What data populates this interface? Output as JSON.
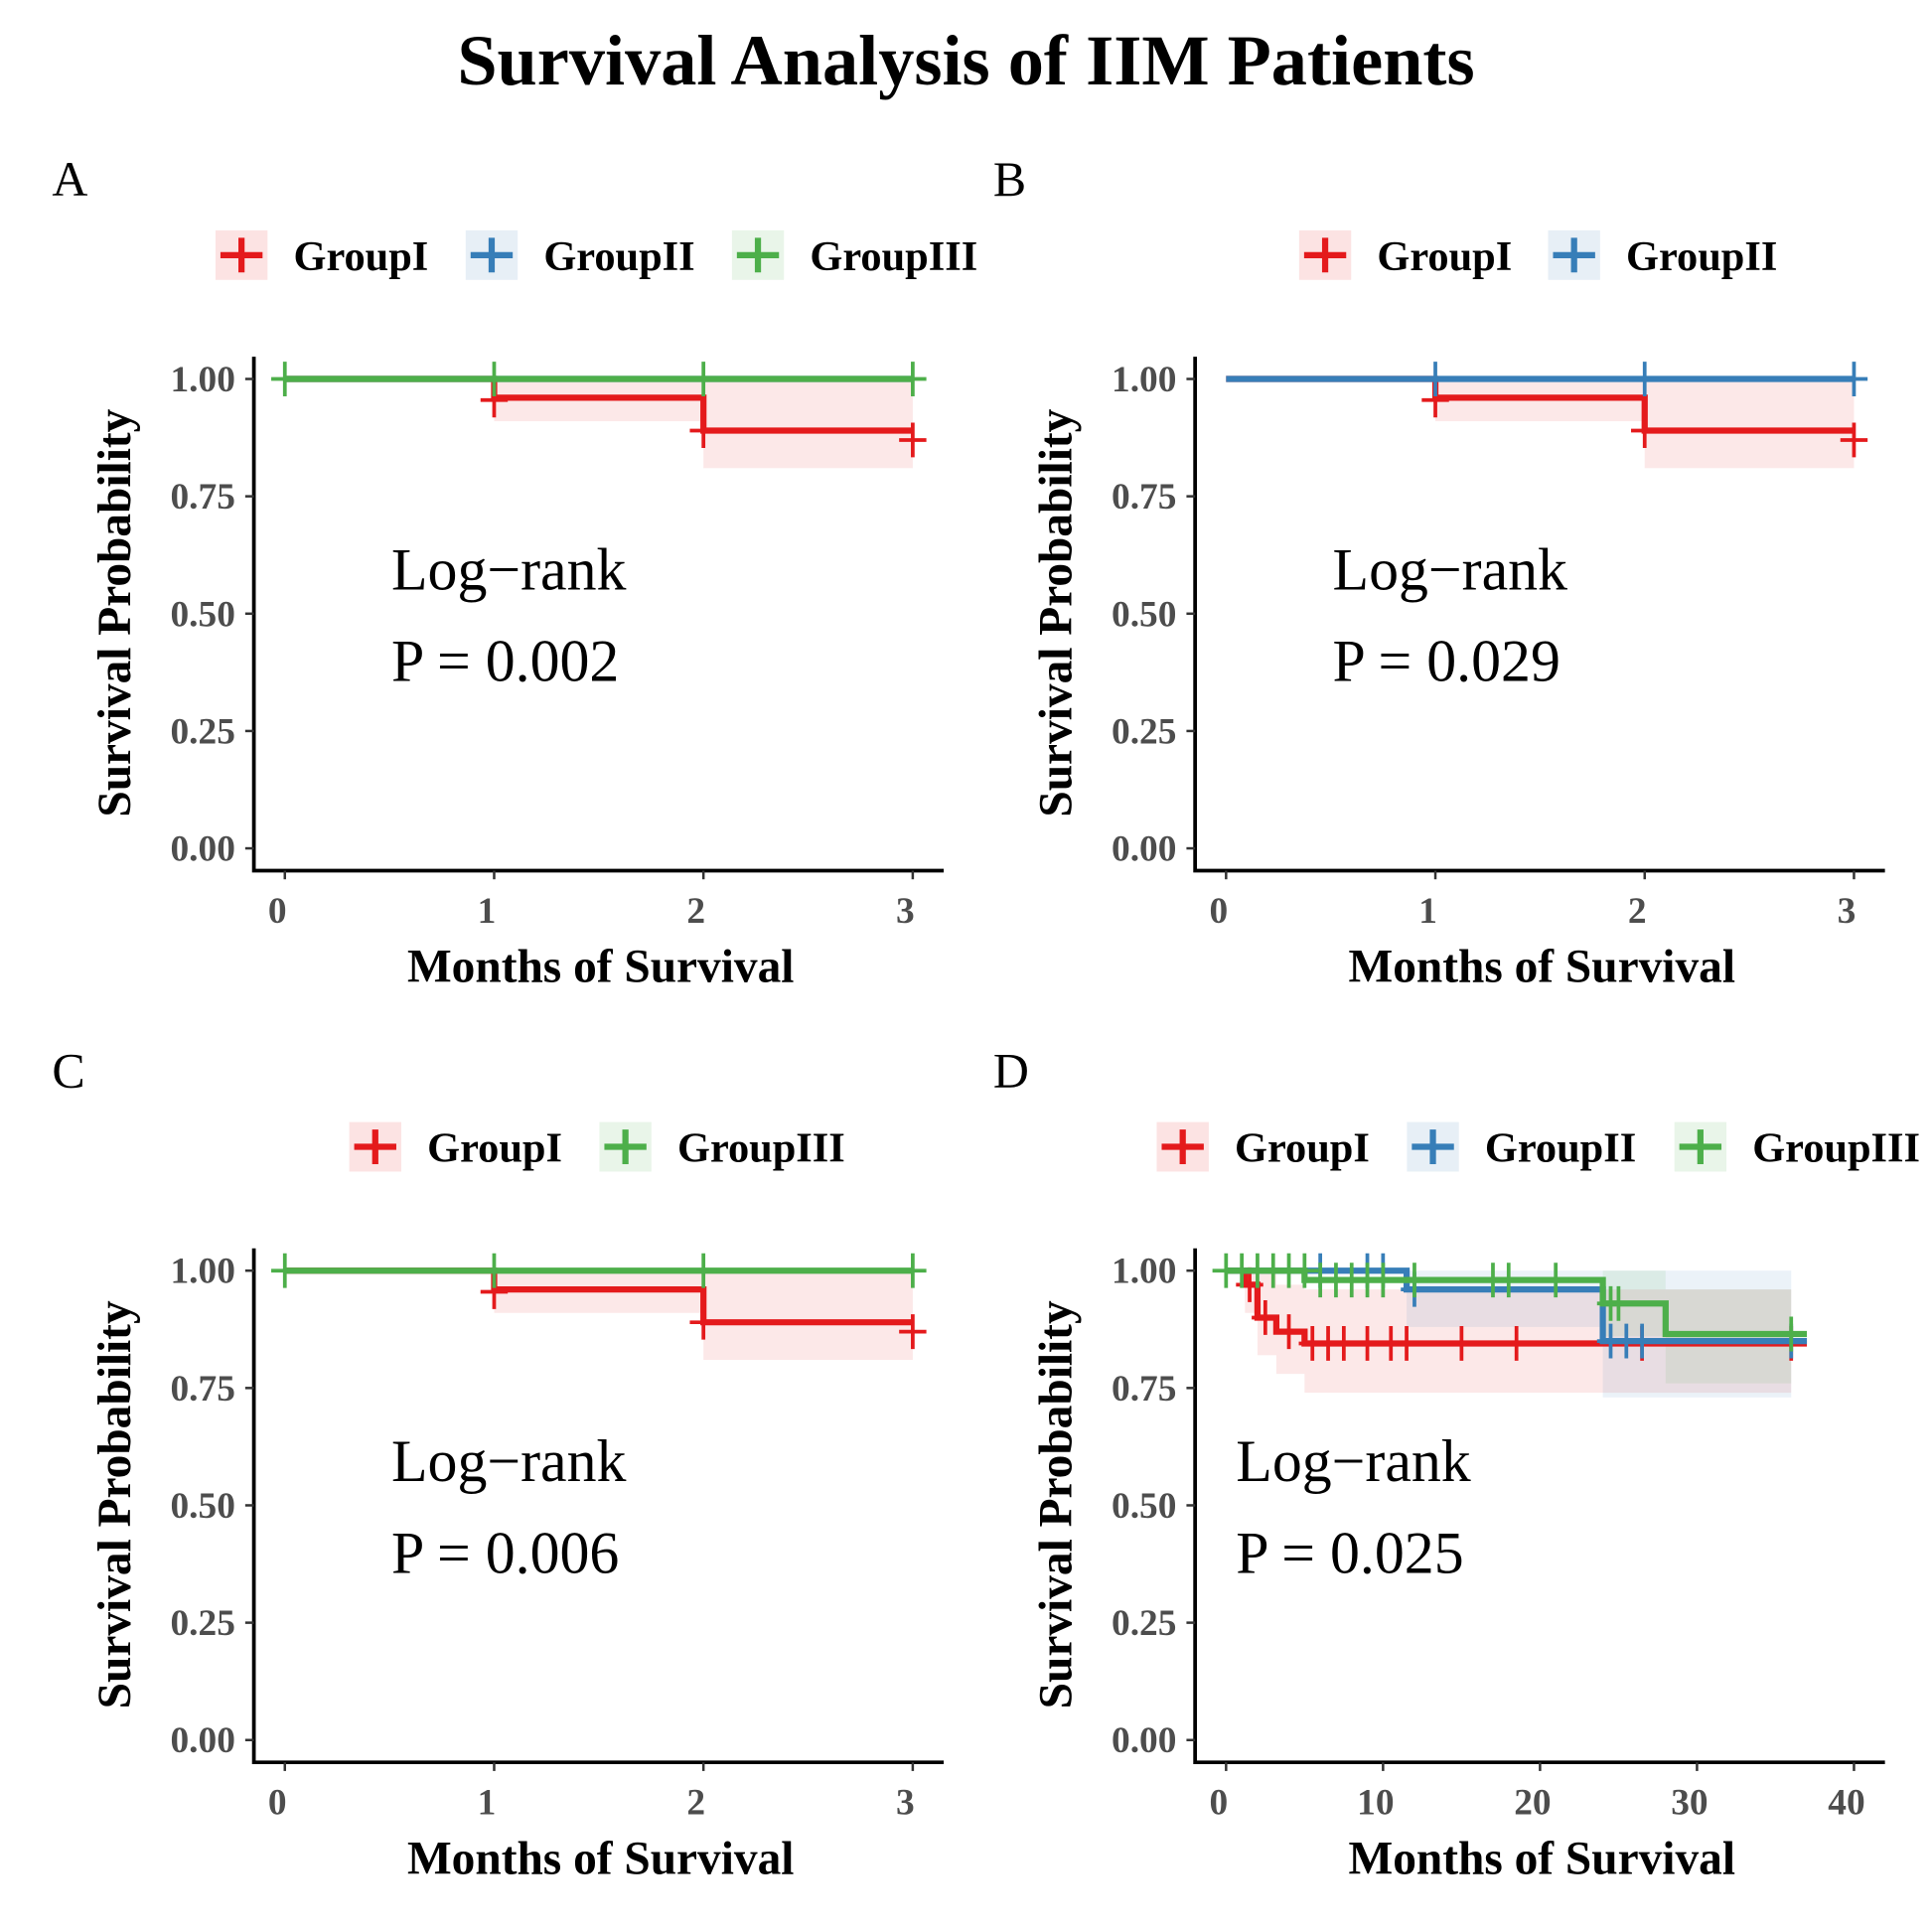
{
  "title": "Survival Analysis of IIM Patients",
  "colors": {
    "GroupI": "#E41A1C",
    "GroupII": "#377EB8",
    "GroupIII": "#4DAF4A"
  },
  "chart_data": [
    {
      "type": "line",
      "panel": "A",
      "xlabel": "Months of Survival",
      "ylabel": "Survival Probability",
      "xlim": [
        0,
        3
      ],
      "ylim": [
        0,
        1
      ],
      "xticks": [
        "0",
        "1",
        "2",
        "3"
      ],
      "yticks": [
        "0.00",
        "0.25",
        "0.50",
        "0.75",
        "1.00"
      ],
      "legend": [
        "GroupI",
        "GroupII",
        "GroupIII"
      ],
      "legend_position": "top",
      "annotation": [
        "Log−rank",
        "P = 0.002"
      ],
      "series": [
        {
          "name": "GroupI",
          "steps": [
            [
              0,
              1
            ],
            [
              1,
              0.96
            ],
            [
              2,
              0.89
            ],
            [
              3,
              0.89
            ]
          ],
          "censor": [
            [
              1,
              0.955
            ],
            [
              2,
              0.89
            ],
            [
              3,
              0.87
            ]
          ],
          "ci": [
            [
              1,
              2,
              0.91,
              1.0
            ],
            [
              2,
              3,
              0.81,
              1.0
            ]
          ]
        },
        {
          "name": "GroupII",
          "steps": [
            [
              0,
              1
            ],
            [
              3,
              1
            ]
          ],
          "censor": [],
          "ci": []
        },
        {
          "name": "GroupIII",
          "steps": [
            [
              0,
              1
            ],
            [
              3,
              1
            ]
          ],
          "censor": [
            [
              0,
              1
            ],
            [
              1,
              1
            ],
            [
              2,
              1
            ],
            [
              3,
              1
            ]
          ],
          "ci": []
        }
      ]
    },
    {
      "type": "line",
      "panel": "B",
      "xlabel": "Months of Survival",
      "ylabel": "Survival Probability",
      "xlim": [
        0,
        3
      ],
      "ylim": [
        0,
        1
      ],
      "xticks": [
        "0",
        "1",
        "2",
        "3"
      ],
      "yticks": [
        "0.00",
        "0.25",
        "0.50",
        "0.75",
        "1.00"
      ],
      "legend": [
        "GroupI",
        "GroupII"
      ],
      "legend_position": "top",
      "annotation": [
        "Log−rank",
        "P = 0.029"
      ],
      "series": [
        {
          "name": "GroupI",
          "steps": [
            [
              0,
              1
            ],
            [
              1,
              0.96
            ],
            [
              2,
              0.89
            ],
            [
              3,
              0.89
            ]
          ],
          "censor": [
            [
              1,
              0.955
            ],
            [
              2,
              0.89
            ],
            [
              3,
              0.87
            ]
          ],
          "ci": [
            [
              1,
              2,
              0.91,
              1.0
            ],
            [
              2,
              3,
              0.81,
              1.0
            ]
          ]
        },
        {
          "name": "GroupII",
          "steps": [
            [
              0,
              1
            ],
            [
              3,
              1
            ]
          ],
          "censor": [
            [
              1,
              1
            ],
            [
              2,
              1
            ],
            [
              3,
              1
            ]
          ],
          "ci": []
        }
      ]
    },
    {
      "type": "line",
      "panel": "C",
      "xlabel": "Months of Survival",
      "ylabel": "Survival Probability",
      "xlim": [
        0,
        3
      ],
      "ylim": [
        0,
        1
      ],
      "xticks": [
        "0",
        "1",
        "2",
        "3"
      ],
      "yticks": [
        "0.00",
        "0.25",
        "0.50",
        "0.75",
        "1.00"
      ],
      "legend": [
        "GroupI",
        "GroupIII"
      ],
      "legend_position": "top",
      "annotation": [
        "Log−rank",
        "P = 0.006"
      ],
      "series": [
        {
          "name": "GroupI",
          "steps": [
            [
              0,
              1
            ],
            [
              1,
              0.96
            ],
            [
              2,
              0.89
            ],
            [
              3,
              0.89
            ]
          ],
          "censor": [
            [
              1,
              0.955
            ],
            [
              2,
              0.89
            ],
            [
              3,
              0.87
            ]
          ],
          "ci": [
            [
              1,
              2,
              0.91,
              1.0
            ],
            [
              2,
              3,
              0.81,
              1.0
            ]
          ]
        },
        {
          "name": "GroupIII",
          "steps": [
            [
              0,
              1
            ],
            [
              3,
              1
            ]
          ],
          "censor": [
            [
              0,
              1
            ],
            [
              1,
              1
            ],
            [
              2,
              1
            ],
            [
              3,
              1
            ]
          ],
          "ci": []
        }
      ]
    },
    {
      "type": "line",
      "panel": "D",
      "xlabel": "Months of Survival",
      "ylabel": "Survival Probability",
      "xlim": [
        0,
        40
      ],
      "ylim": [
        0,
        1
      ],
      "xticks": [
        "0",
        "10",
        "20",
        "30",
        "40"
      ],
      "yticks": [
        "0.00",
        "0.25",
        "0.50",
        "0.75",
        "1.00"
      ],
      "legend": [
        "GroupI",
        "GroupII",
        "GroupIII"
      ],
      "legend_position": "top",
      "annotation": [
        "Log−rank",
        "P = 0.025"
      ],
      "series": [
        {
          "name": "GroupI",
          "steps": [
            [
              0,
              1
            ],
            [
              1.2,
              0.97
            ],
            [
              2,
              0.9
            ],
            [
              3.2,
              0.87
            ],
            [
              5,
              0.845
            ],
            [
              37,
              0.845
            ]
          ],
          "censor": [
            [
              1.5,
              0.97
            ],
            [
              2.5,
              0.9
            ],
            [
              4,
              0.87
            ],
            [
              5.5,
              0.845
            ],
            [
              6.5,
              0.845
            ],
            [
              7.5,
              0.845
            ],
            [
              9,
              0.845
            ],
            [
              10.5,
              0.845
            ],
            [
              11.5,
              0.845
            ],
            [
              15,
              0.845
            ],
            [
              18.5,
              0.845
            ],
            [
              26.5,
              0.845
            ],
            [
              36,
              0.845
            ]
          ],
          "ci": [
            [
              1.2,
              2,
              0.91,
              1.0
            ],
            [
              2,
              3.2,
              0.82,
              1.0
            ],
            [
              3.2,
              5,
              0.78,
              0.97
            ],
            [
              5,
              24.5,
              0.74,
              0.96
            ],
            [
              24.5,
              36,
              0.74,
              0.96
            ]
          ]
        },
        {
          "name": "GroupII",
          "steps": [
            [
              0,
              1
            ],
            [
              11.5,
              0.96
            ],
            [
              24,
              0.85
            ],
            [
              37,
              0.85
            ]
          ],
          "censor": [
            [
              6,
              1
            ],
            [
              9,
              1
            ],
            [
              10,
              1
            ],
            [
              12,
              0.96
            ],
            [
              24.5,
              0.85
            ],
            [
              25.5,
              0.85
            ],
            [
              26.5,
              0.85
            ],
            [
              36,
              0.85
            ]
          ],
          "ci": [
            [
              11.5,
              24,
              0.88,
              1.0
            ],
            [
              24,
              36,
              0.73,
              1.0
            ]
          ]
        },
        {
          "name": "GroupIII",
          "steps": [
            [
              0,
              1
            ],
            [
              5,
              0.98
            ],
            [
              24,
              0.93
            ],
            [
              28,
              0.865
            ],
            [
              37,
              0.865
            ]
          ],
          "censor": [
            [
              0,
              1
            ],
            [
              1,
              1
            ],
            [
              2,
              1
            ],
            [
              3,
              1
            ],
            [
              4,
              1
            ],
            [
              5,
              1
            ],
            [
              6,
              0.98
            ],
            [
              7,
              0.98
            ],
            [
              8,
              0.98
            ],
            [
              9,
              0.98
            ],
            [
              10,
              0.98
            ],
            [
              12,
              0.98
            ],
            [
              17,
              0.98
            ],
            [
              18,
              0.98
            ],
            [
              21,
              0.98
            ],
            [
              24.5,
              0.93
            ],
            [
              25,
              0.93
            ],
            [
              36,
              0.865
            ]
          ],
          "ci": [
            [
              24,
              28,
              0.86,
              1.0
            ],
            [
              28,
              36,
              0.76,
              0.96
            ]
          ]
        }
      ]
    }
  ]
}
